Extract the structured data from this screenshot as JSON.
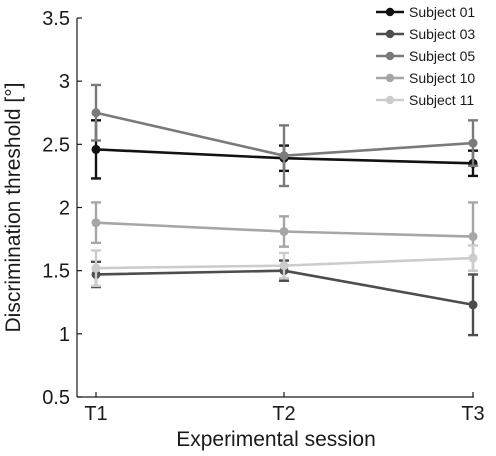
{
  "chart_data": {
    "type": "line",
    "xlabel": "Experimental session",
    "ylabel": "Discrimination threshold [°]",
    "categories": [
      "T1",
      "T2",
      "T3"
    ],
    "ylim": [
      0.5,
      3.5
    ],
    "yticks": [
      "0.5",
      "1",
      "1.5",
      "2",
      "2.5",
      "3",
      "3.5"
    ],
    "grid": false,
    "legend": "top-right",
    "series": [
      {
        "name": "Subject 01",
        "color": "#111111",
        "values": [
          2.46,
          2.39,
          2.35
        ],
        "error": [
          0.23,
          0.1,
          0.1
        ]
      },
      {
        "name": "Subject 03",
        "color": "#4d4d4d",
        "values": [
          1.47,
          1.5,
          1.23
        ],
        "error": [
          0.1,
          0.08,
          0.24
        ]
      },
      {
        "name": "Subject 05",
        "color": "#7a7a7a",
        "values": [
          2.75,
          2.41,
          2.51
        ],
        "error": [
          0.22,
          0.24,
          0.18
        ]
      },
      {
        "name": "Subject 10",
        "color": "#a6a6a6",
        "values": [
          1.88,
          1.81,
          1.77
        ],
        "error": [
          0.16,
          0.12,
          0.27
        ]
      },
      {
        "name": "Subject 11",
        "color": "#cccccc",
        "values": [
          1.52,
          1.54,
          1.6
        ],
        "error": [
          0.14,
          0.1,
          0.1
        ]
      }
    ]
  }
}
